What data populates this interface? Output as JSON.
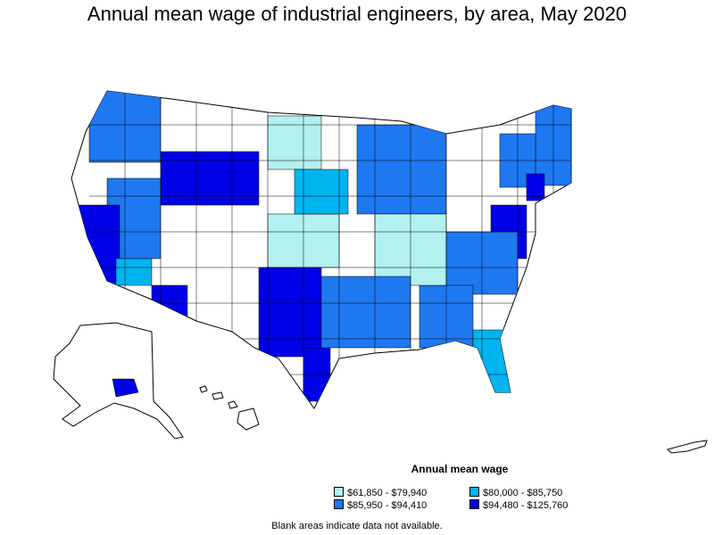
{
  "title": "Annual mean wage of industrial engineers, by area, May 2020",
  "legend": {
    "title": "Annual mean wage",
    "items": [
      {
        "label": "$61,850 - $79,940",
        "color": "#b3f0f0"
      },
      {
        "label": "$80,000 - $85,750",
        "color": "#00b4f0"
      },
      {
        "label": "$85,950 - $94,410",
        "color": "#1e78f0"
      },
      {
        "label": "$94,480 - $125,760",
        "color": "#0000e6"
      }
    ]
  },
  "note": "Blank areas indicate data not available.",
  "colors": {
    "blank": "#ffffff",
    "border": "#000000"
  }
}
